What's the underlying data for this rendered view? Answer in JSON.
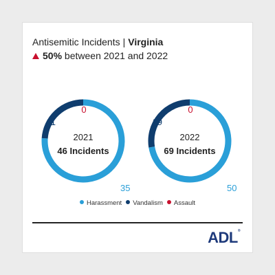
{
  "header": {
    "title": "Antisemitic Incidents",
    "separator": "|",
    "state": "Virginia",
    "change_pct": "50%",
    "change_text": "between 2021 and 2022"
  },
  "colors": {
    "Harassment": "#2a9fd8",
    "Vandalism": "#0f3d6e",
    "Assault": "#c8102e"
  },
  "chart_data": [
    {
      "type": "pie",
      "variant": "donut",
      "year": "2021",
      "center_label": "46 Incidents",
      "categories": [
        "Harassment",
        "Vandalism",
        "Assault"
      ],
      "values": [
        35,
        11,
        0
      ]
    },
    {
      "type": "pie",
      "variant": "donut",
      "year": "2022",
      "center_label": "69 Incidents",
      "categories": [
        "Harassment",
        "Vandalism",
        "Assault"
      ],
      "values": [
        50,
        19,
        0
      ]
    }
  ],
  "legend": [
    {
      "label": "Harassment",
      "color": "#2a9fd8"
    },
    {
      "label": "Vandalism",
      "color": "#0f3d6e"
    },
    {
      "label": "Assault",
      "color": "#c8102e"
    }
  ],
  "logo": {
    "text": "ADL",
    "mark": "®"
  }
}
